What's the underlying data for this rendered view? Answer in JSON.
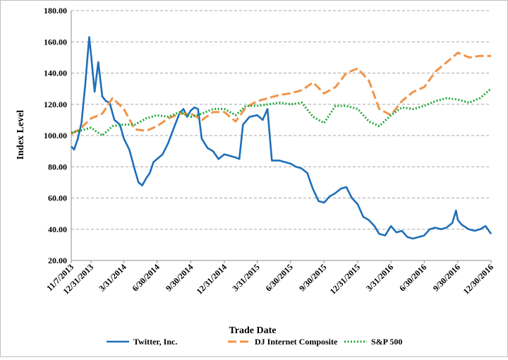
{
  "chart_data": {
    "type": "line",
    "title": "",
    "xlabel": "Trade Date",
    "ylabel": "Index Level",
    "ylim": [
      20,
      180
    ],
    "yticks": [
      "20.00",
      "40.00",
      "60.00",
      "80.00",
      "100.00",
      "120.00",
      "140.00",
      "160.00",
      "180.00"
    ],
    "xticks": [
      "11/7/2013",
      "12/31/2013",
      "3/31/2014",
      "6/30/2014",
      "9/30/2014",
      "12/31/2014",
      "3/31/2015",
      "6/30/2015",
      "9/30/2015",
      "12/31/2015",
      "3/31/2016",
      "6/30/2016",
      "9/30/2016",
      "12/30/2016"
    ],
    "grid": "horizontal dashed",
    "legend_position": "bottom",
    "series": [
      {
        "name": "Twitter, Inc.",
        "color": "#1f6fb8",
        "style": "solid",
        "x": [
          "11/7/2013",
          "11/15/2013",
          "11/25/2013",
          "12/5/2013",
          "12/15/2013",
          "12/26/2013",
          "12/31/2013",
          "1/10/2014",
          "1/20/2014",
          "1/31/2014",
          "2/10/2014",
          "2/20/2014",
          "3/5/2014",
          "3/20/2014",
          "3/31/2014",
          "4/15/2014",
          "4/30/2014",
          "5/10/2014",
          "5/20/2014",
          "6/1/2014",
          "6/10/2014",
          "6/20/2014",
          "6/30/2014",
          "7/15/2014",
          "7/30/2014",
          "8/15/2014",
          "8/30/2014",
          "9/10/2014",
          "9/20/2014",
          "9/30/2014",
          "10/10/2014",
          "10/20/2014",
          "10/30/2014",
          "11/15/2014",
          "11/30/2014",
          "12/15/2014",
          "12/31/2014",
          "1/15/2015",
          "1/30/2015",
          "2/10/2015",
          "2/20/2015",
          "3/10/2015",
          "3/31/2015",
          "4/15/2015",
          "4/28/2015",
          "5/10/2015",
          "5/30/2015",
          "6/15/2015",
          "6/30/2015",
          "7/15/2015",
          "7/30/2015",
          "8/15/2015",
          "8/30/2015",
          "9/15/2015",
          "9/30/2015",
          "10/15/2015",
          "10/30/2015",
          "11/15/2015",
          "11/30/2015",
          "12/15/2015",
          "12/31/2015",
          "1/15/2016",
          "1/30/2016",
          "2/15/2016",
          "2/28/2016",
          "3/15/2016",
          "3/31/2016",
          "4/15/2016",
          "4/30/2016",
          "5/15/2016",
          "5/30/2016",
          "6/15/2016",
          "6/30/2016",
          "7/15/2016",
          "7/30/2016",
          "8/15/2016",
          "8/30/2016",
          "9/15/2016",
          "9/25/2016",
          "9/30/2016",
          "10/10/2016",
          "10/30/2016",
          "11/15/2016",
          "11/30/2016",
          "12/15/2016",
          "12/30/2016"
        ],
        "values": [
          93,
          91,
          98,
          108,
          132,
          163,
          152,
          128,
          147,
          125,
          122,
          121,
          110,
          107,
          98,
          91,
          78,
          70,
          68,
          73,
          76,
          83,
          85,
          88,
          95,
          105,
          114,
          117,
          112,
          116,
          118,
          117,
          98,
          92,
          90,
          85,
          88,
          87,
          86,
          85,
          107,
          112,
          113,
          110,
          117,
          84,
          84,
          83,
          82,
          80,
          79,
          76,
          66,
          58,
          57,
          61,
          63,
          66,
          67,
          60,
          56,
          48,
          46,
          42,
          37,
          36,
          42,
          38,
          39,
          35,
          34,
          35,
          36,
          40,
          41,
          40,
          41,
          44,
          52,
          46,
          43,
          40,
          39,
          40,
          42,
          37
        ]
      },
      {
        "name": "DJ Internet Composite",
        "color": "#f0944a",
        "style": "dashed",
        "x": [
          "11/7/2013",
          "11/30/2013",
          "12/31/2013",
          "1/31/2014",
          "2/28/2014",
          "3/31/2014",
          "4/30/2014",
          "5/31/2014",
          "6/30/2014",
          "7/31/2014",
          "8/31/2014",
          "9/30/2014",
          "10/31/2014",
          "11/30/2014",
          "12/31/2014",
          "1/31/2015",
          "2/28/2015",
          "3/31/2015",
          "4/30/2015",
          "5/31/2015",
          "6/30/2015",
          "7/31/2015",
          "8/31/2015",
          "9/30/2015",
          "10/31/2015",
          "11/30/2015",
          "12/31/2015",
          "1/31/2016",
          "2/28/2016",
          "3/31/2016",
          "4/30/2016",
          "5/31/2016",
          "6/30/2016",
          "7/31/2016",
          "8/31/2016",
          "9/30/2016",
          "10/31/2016",
          "11/30/2016",
          "12/30/2016"
        ],
        "values": [
          101,
          104,
          111,
          114,
          124,
          117,
          104,
          103,
          106,
          111,
          114,
          114,
          110,
          115,
          115,
          109,
          118,
          122,
          124,
          126,
          127,
          129,
          134,
          127,
          131,
          140,
          143,
          135,
          117,
          113,
          122,
          128,
          131,
          141,
          147,
          153,
          150,
          151,
          151
        ]
      },
      {
        "name": "S&P 500",
        "color": "#22a83a",
        "style": "dotted",
        "x": [
          "11/7/2013",
          "11/30/2013",
          "12/31/2013",
          "1/31/2014",
          "2/28/2014",
          "3/31/2014",
          "4/30/2014",
          "5/31/2014",
          "6/30/2014",
          "7/31/2014",
          "8/31/2014",
          "9/30/2014",
          "10/31/2014",
          "11/30/2014",
          "12/31/2014",
          "1/31/2015",
          "2/28/2015",
          "3/31/2015",
          "4/30/2015",
          "5/31/2015",
          "6/30/2015",
          "7/31/2015",
          "8/31/2015",
          "9/30/2015",
          "10/31/2015",
          "11/30/2015",
          "12/31/2015",
          "1/31/2016",
          "2/28/2016",
          "3/31/2016",
          "4/30/2016",
          "5/31/2016",
          "6/30/2016",
          "7/31/2016",
          "8/31/2016",
          "9/30/2016",
          "10/31/2016",
          "11/30/2016",
          "12/30/2016"
        ],
        "values": [
          102,
          103,
          105,
          100,
          106,
          107,
          107,
          111,
          113,
          112,
          115,
          112,
          114,
          117,
          117,
          113,
          119,
          119,
          120,
          121,
          120,
          121,
          112,
          108,
          119,
          119,
          117,
          109,
          106,
          113,
          118,
          117,
          119,
          122,
          124,
          123,
          121,
          124,
          130
        ]
      }
    ]
  }
}
